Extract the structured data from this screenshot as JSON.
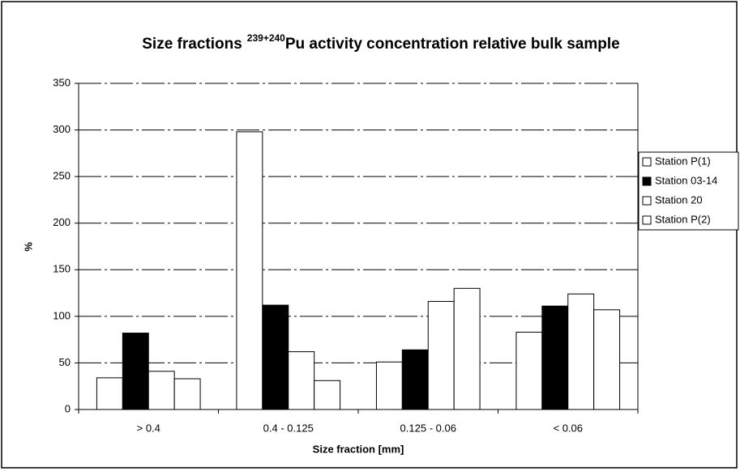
{
  "chart_data": {
    "type": "bar",
    "title": [
      "Size fractions",
      "239+240",
      "Pu activity concentration relative bulk sample"
    ],
    "x_label": "Size fraction [mm]",
    "y_label": "%",
    "categories": [
      "> 0.4",
      "0.4 - 0.125",
      "0.125 - 0.06",
      "< 0.06"
    ],
    "series": [
      {
        "name": "Station P(1)",
        "color": "#ffffff",
        "values": [
          34,
          298,
          51,
          83
        ]
      },
      {
        "name": "Station 03-14",
        "color": "#000000",
        "values": [
          82,
          112,
          64,
          111
        ]
      },
      {
        "name": "Station 20",
        "color": "#ffffff",
        "values": [
          41,
          62,
          116,
          124
        ]
      },
      {
        "name": "Station P(2)",
        "color": "#ffffff",
        "values": [
          33,
          31,
          130,
          107
        ]
      }
    ],
    "ylim": [
      0,
      350
    ],
    "yticks": [
      0,
      50,
      100,
      150,
      200,
      250,
      300,
      350
    ],
    "grid": true,
    "legend": "right"
  }
}
